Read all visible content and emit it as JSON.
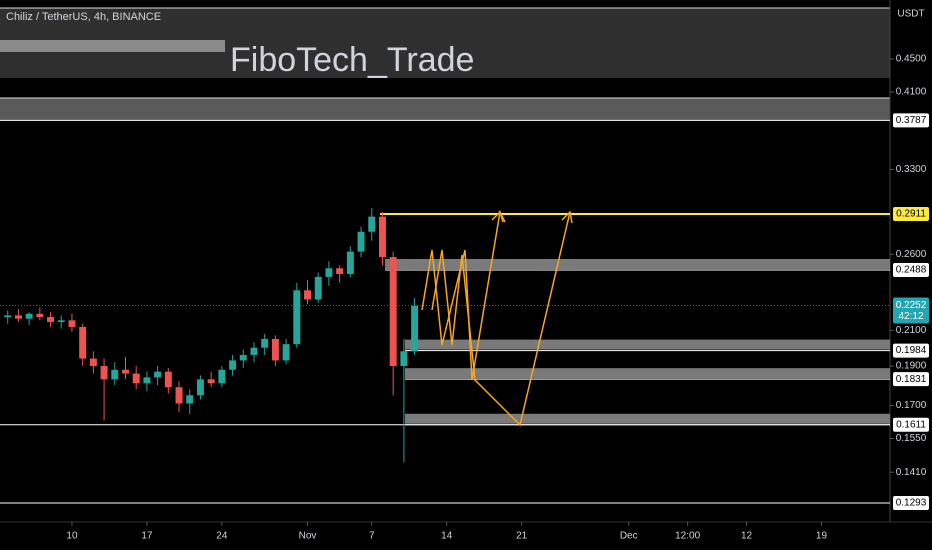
{
  "chart_data": {
    "type": "candlestick",
    "title": "Chiliz / TetherUS, 4h, BINANCE",
    "currency": "USDT",
    "watermark": "FiboTech_Trade",
    "log_scale": true,
    "up_color": "#26a69a",
    "down_color": "#ef5350",
    "x": [
      -6,
      -5,
      -4,
      -3,
      -2,
      -1,
      0,
      1,
      2,
      3,
      4,
      5,
      6,
      7,
      8,
      9,
      10,
      11,
      12,
      13,
      14,
      15,
      16,
      17,
      18,
      19,
      20,
      21,
      22,
      23,
      24,
      25,
      26,
      27,
      28,
      29,
      30,
      31,
      32
    ],
    "open": [
      0.218,
      0.219,
      0.217,
      0.22,
      0.218,
      0.215,
      0.216,
      0.212,
      0.194,
      0.19,
      0.183,
      0.188,
      0.186,
      0.181,
      0.184,
      0.187,
      0.179,
      0.171,
      0.175,
      0.183,
      0.181,
      0.188,
      0.193,
      0.196,
      0.2,
      0.205,
      0.193,
      0.202,
      0.235,
      0.229,
      0.244,
      0.25,
      0.246,
      0.262,
      0.277,
      0.289,
      0.258,
      0.19,
      0.198
    ],
    "high": [
      0.222,
      0.223,
      0.221,
      0.224,
      0.221,
      0.219,
      0.22,
      0.214,
      0.198,
      0.194,
      0.192,
      0.195,
      0.19,
      0.187,
      0.19,
      0.189,
      0.182,
      0.178,
      0.185,
      0.187,
      0.19,
      0.196,
      0.199,
      0.203,
      0.208,
      0.207,
      0.205,
      0.24,
      0.242,
      0.247,
      0.255,
      0.252,
      0.266,
      0.281,
      0.296,
      0.293,
      0.262,
      0.205,
      0.23
    ],
    "low": [
      0.214,
      0.215,
      0.213,
      0.216,
      0.212,
      0.211,
      0.209,
      0.19,
      0.186,
      0.163,
      0.18,
      0.183,
      0.178,
      0.177,
      0.18,
      0.176,
      0.167,
      0.166,
      0.173,
      0.179,
      0.179,
      0.185,
      0.189,
      0.192,
      0.196,
      0.19,
      0.191,
      0.2,
      0.226,
      0.227,
      0.238,
      0.24,
      0.244,
      0.258,
      0.27,
      0.252,
      0.175,
      0.145,
      0.196
    ],
    "close": [
      0.219,
      0.217,
      0.22,
      0.218,
      0.215,
      0.216,
      0.212,
      0.194,
      0.19,
      0.183,
      0.188,
      0.186,
      0.181,
      0.184,
      0.187,
      0.179,
      0.171,
      0.175,
      0.183,
      0.181,
      0.188,
      0.193,
      0.196,
      0.2,
      0.205,
      0.193,
      0.202,
      0.235,
      0.229,
      0.244,
      0.25,
      0.246,
      0.262,
      0.277,
      0.289,
      0.258,
      0.19,
      0.198,
      0.225
    ],
    "xlim": [
      -6.72,
      76.4
    ],
    "ylim": [
      0.1226,
      0.531
    ],
    "xticks": [
      {
        "value": 0,
        "label": "10"
      },
      {
        "value": 7,
        "label": "17"
      },
      {
        "value": 14,
        "label": "24"
      },
      {
        "value": 22,
        "label": "Nov"
      },
      {
        "value": 28,
        "label": "7"
      },
      {
        "value": 35,
        "label": "14"
      },
      {
        "value": 42,
        "label": "21"
      },
      {
        "value": 52,
        "label": "Dec"
      },
      {
        "value": 57.5,
        "label": "12:00"
      },
      {
        "value": 63,
        "label": "12"
      },
      {
        "value": 70,
        "label": "19"
      }
    ],
    "yticks": [
      {
        "value": 0.45,
        "label": "0.4500"
      },
      {
        "value": 0.41,
        "label": "0.4100"
      },
      {
        "value": 0.33,
        "label": "0.3300"
      },
      {
        "value": 0.26,
        "label": "0.2600"
      },
      {
        "value": 0.21,
        "label": "0.2100"
      },
      {
        "value": 0.19,
        "label": "0.1900"
      },
      {
        "value": 0.17,
        "label": "0.1700"
      },
      {
        "value": 0.155,
        "label": "0.1550"
      },
      {
        "value": 0.141,
        "label": "0.1410"
      }
    ],
    "levels": [
      {
        "value": 0.3787,
        "color": "#ffffff"
      },
      {
        "value": 0.2911,
        "color": "#ffeb3b"
      },
      {
        "value": 0.2488,
        "color": "#ffffff"
      },
      {
        "value": 0.1984,
        "color": "#ffffff"
      },
      {
        "value": 0.1831,
        "color": "#ffffff"
      },
      {
        "value": 0.1611,
        "color": "#ffffff"
      },
      {
        "value": 0.1293,
        "color": "#ffffff"
      }
    ],
    "last_price": {
      "value": 0.2252,
      "countdown": "42:12",
      "color": "#22a6b3"
    }
  }
}
